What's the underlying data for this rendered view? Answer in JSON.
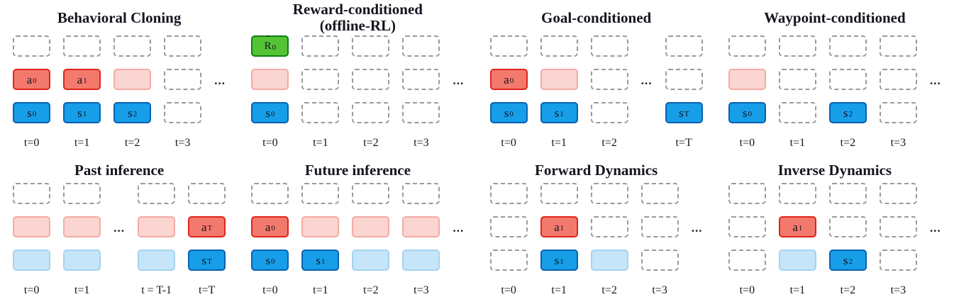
{
  "figure": {
    "ellipsis": "...",
    "colors": {
      "action-fill": "#f4796d",
      "action-border": "#e0241a",
      "action-faded-fill": "#fbd5d1",
      "action-faded-border": "#f3aba4",
      "state-fill": "#169ee9",
      "state-border": "#0a61ae",
      "state-faded-fill": "#c7e5f8",
      "state-faded-border": "#a5d3ef",
      "reward-fill": "#54c235",
      "reward-border": "#107d13",
      "empty-border": "#9b9b9b",
      "text": "#14141e"
    },
    "panels": [
      {
        "id": "behavioral-cloning",
        "title": "Behavioral Cloning",
        "columns": [
          {
            "t": "t=0",
            "cells": [
              {
                "k": "empty"
              },
              {
                "k": "action",
                "label": "a",
                "sub": "0"
              },
              {
                "k": "state",
                "label": "s",
                "sub": "0"
              }
            ]
          },
          {
            "t": "t=1",
            "cells": [
              {
                "k": "empty"
              },
              {
                "k": "action",
                "label": "a",
                "sub": "1"
              },
              {
                "k": "state",
                "label": "s",
                "sub": "1"
              }
            ]
          },
          {
            "t": "t=2",
            "cells": [
              {
                "k": "empty"
              },
              {
                "k": "action-faded"
              },
              {
                "k": "state",
                "label": "s",
                "sub": "2"
              }
            ]
          },
          {
            "t": "t=3",
            "cells": [
              {
                "k": "empty"
              },
              {
                "k": "empty"
              },
              {
                "k": "empty"
              }
            ]
          },
          {
            "ellipsis": true
          }
        ]
      },
      {
        "id": "reward-conditioned",
        "title": "Reward-conditioned\n(offline-RL)",
        "columns": [
          {
            "t": "t=0",
            "cells": [
              {
                "k": "reward",
                "label": "R",
                "hat": true,
                "sub": "0"
              },
              {
                "k": "action-faded"
              },
              {
                "k": "state",
                "label": "s",
                "sub": "0"
              }
            ]
          },
          {
            "t": "t=1",
            "cells": [
              {
                "k": "empty"
              },
              {
                "k": "empty"
              },
              {
                "k": "empty"
              }
            ]
          },
          {
            "t": "t=2",
            "cells": [
              {
                "k": "empty"
              },
              {
                "k": "empty"
              },
              {
                "k": "empty"
              }
            ]
          },
          {
            "t": "t=3",
            "cells": [
              {
                "k": "empty"
              },
              {
                "k": "empty"
              },
              {
                "k": "empty"
              }
            ]
          },
          {
            "ellipsis": true
          }
        ]
      },
      {
        "id": "goal-conditioned",
        "title": "Goal-conditioned",
        "columns": [
          {
            "t": "t=0",
            "cells": [
              {
                "k": "empty"
              },
              {
                "k": "action",
                "label": "a",
                "sub": "0"
              },
              {
                "k": "state",
                "label": "s",
                "sub": "0"
              }
            ]
          },
          {
            "t": "t=1",
            "cells": [
              {
                "k": "empty"
              },
              {
                "k": "action-faded"
              },
              {
                "k": "state",
                "label": "s",
                "sub": "1"
              }
            ]
          },
          {
            "t": "t=2",
            "cells": [
              {
                "k": "empty"
              },
              {
                "k": "empty"
              },
              {
                "k": "empty"
              }
            ]
          },
          {
            "ellipsis": true
          },
          {
            "t": "t=T",
            "cells": [
              {
                "k": "empty"
              },
              {
                "k": "empty"
              },
              {
                "k": "state",
                "label": "s",
                "sub": "T"
              }
            ]
          }
        ]
      },
      {
        "id": "waypoint-conditioned",
        "title": "Waypoint-conditioned",
        "columns": [
          {
            "t": "t=0",
            "cells": [
              {
                "k": "empty"
              },
              {
                "k": "action-faded"
              },
              {
                "k": "state",
                "label": "s",
                "sub": "0"
              }
            ]
          },
          {
            "t": "t=1",
            "cells": [
              {
                "k": "empty"
              },
              {
                "k": "empty"
              },
              {
                "k": "empty"
              }
            ]
          },
          {
            "t": "t=2",
            "cells": [
              {
                "k": "empty"
              },
              {
                "k": "empty"
              },
              {
                "k": "state",
                "label": "s",
                "sub": "2"
              }
            ]
          },
          {
            "t": "t=3",
            "cells": [
              {
                "k": "empty"
              },
              {
                "k": "empty"
              },
              {
                "k": "empty"
              }
            ]
          },
          {
            "ellipsis": true
          }
        ]
      },
      {
        "id": "past-inference",
        "title": "Past inference",
        "columns": [
          {
            "t": "t=0",
            "cells": [
              {
                "k": "empty"
              },
              {
                "k": "action-faded"
              },
              {
                "k": "state-faded"
              }
            ]
          },
          {
            "t": "t=1",
            "cells": [
              {
                "k": "empty"
              },
              {
                "k": "action-faded"
              },
              {
                "k": "state-faded"
              }
            ]
          },
          {
            "ellipsis": true
          },
          {
            "t": "t = T-1",
            "cells": [
              {
                "k": "empty"
              },
              {
                "k": "action-faded"
              },
              {
                "k": "state-faded"
              }
            ]
          },
          {
            "t": "t=T",
            "cells": [
              {
                "k": "empty"
              },
              {
                "k": "action",
                "label": "a",
                "sub": "T"
              },
              {
                "k": "state",
                "label": "s",
                "sub": "T"
              }
            ]
          }
        ]
      },
      {
        "id": "future-inference",
        "title": "Future inference",
        "columns": [
          {
            "t": "t=0",
            "cells": [
              {
                "k": "empty"
              },
              {
                "k": "action",
                "label": "a",
                "sub": "0"
              },
              {
                "k": "state",
                "label": "s",
                "sub": "0"
              }
            ]
          },
          {
            "t": "t=1",
            "cells": [
              {
                "k": "empty"
              },
              {
                "k": "action-faded"
              },
              {
                "k": "state",
                "label": "s",
                "sub": "1"
              }
            ]
          },
          {
            "t": "t=2",
            "cells": [
              {
                "k": "empty"
              },
              {
                "k": "action-faded"
              },
              {
                "k": "state-faded"
              }
            ]
          },
          {
            "t": "t=3",
            "cells": [
              {
                "k": "empty"
              },
              {
                "k": "action-faded"
              },
              {
                "k": "state-faded"
              }
            ]
          },
          {
            "ellipsis": true
          }
        ]
      },
      {
        "id": "forward-dynamics",
        "title": "Forward Dynamics",
        "columns": [
          {
            "t": "t=0",
            "cells": [
              {
                "k": "empty"
              },
              {
                "k": "empty"
              },
              {
                "k": "empty"
              }
            ]
          },
          {
            "t": "t=1",
            "cells": [
              {
                "k": "empty"
              },
              {
                "k": "action",
                "label": "a",
                "sub": "1"
              },
              {
                "k": "state",
                "label": "s",
                "sub": "1"
              }
            ]
          },
          {
            "t": "t=2",
            "cells": [
              {
                "k": "empty"
              },
              {
                "k": "empty"
              },
              {
                "k": "state-faded"
              }
            ]
          },
          {
            "t": "t=3",
            "cells": [
              {
                "k": "empty"
              },
              {
                "k": "empty"
              },
              {
                "k": "empty"
              }
            ]
          },
          {
            "ellipsis": true
          }
        ]
      },
      {
        "id": "inverse-dynamics",
        "title": "Inverse Dynamics",
        "columns": [
          {
            "t": "t=0",
            "cells": [
              {
                "k": "empty"
              },
              {
                "k": "empty"
              },
              {
                "k": "empty"
              }
            ]
          },
          {
            "t": "t=1",
            "cells": [
              {
                "k": "empty"
              },
              {
                "k": "action",
                "label": "a",
                "sub": "1"
              },
              {
                "k": "state-faded"
              }
            ]
          },
          {
            "t": "t=2",
            "cells": [
              {
                "k": "empty"
              },
              {
                "k": "empty"
              },
              {
                "k": "state",
                "label": "s",
                "sub": "2"
              }
            ]
          },
          {
            "t": "t=3",
            "cells": [
              {
                "k": "empty"
              },
              {
                "k": "empty"
              },
              {
                "k": "empty"
              }
            ]
          },
          {
            "ellipsis": true
          }
        ]
      }
    ]
  }
}
